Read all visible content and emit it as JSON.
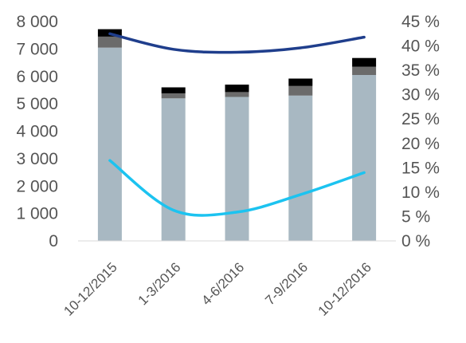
{
  "chart_data": {
    "type": "bar",
    "categories": [
      "10-12/2015",
      "1-3/2016",
      "4-6/2016",
      "7-9/2016",
      "10-12/2016"
    ],
    "stacked": true,
    "series": [
      {
        "color": "#a8b8c2",
        "values": [
          7050,
          5200,
          5250,
          5300,
          6050
        ]
      },
      {
        "color": "#6b6b6b",
        "values": [
          400,
          180,
          180,
          350,
          300
        ]
      },
      {
        "color": "#000000",
        "values": [
          270,
          220,
          270,
          270,
          320
        ]
      }
    ],
    "line_series": [
      {
        "color": "#1f3e8c",
        "axis": "right",
        "values": [
          42.5,
          39.3,
          38.7,
          39.6,
          41.8
        ]
      },
      {
        "color": "#1cc3f0",
        "axis": "right",
        "values": [
          16.5,
          6.3,
          5.9,
          9.5,
          14.0
        ]
      }
    ],
    "y_left": {
      "min": 0,
      "max": 8000,
      "ticks": [
        "0",
        "1 000",
        "2 000",
        "3 000",
        "4 000",
        "5 000",
        "6 000",
        "7 000",
        "8 000"
      ]
    },
    "y_right": {
      "min": 0,
      "max": 45,
      "ticks": [
        "0 %",
        "5 %",
        "10 %",
        "15 %",
        "20 %",
        "25 %",
        "30 %",
        "35 %",
        "40 %",
        "45 %"
      ]
    },
    "grid": false,
    "legend": "none"
  }
}
